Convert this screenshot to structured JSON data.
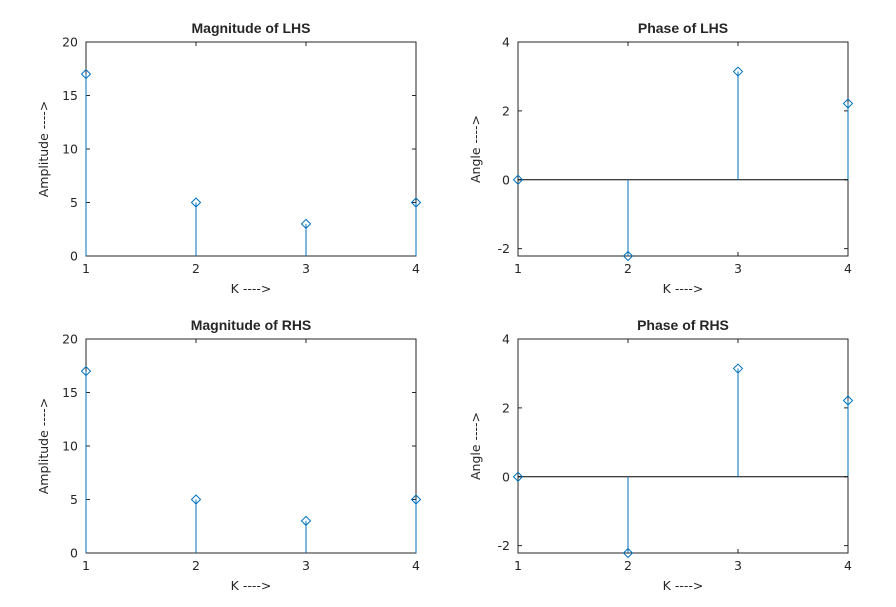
{
  "colors": {
    "stem": "#0072BD",
    "axis": "#262626",
    "baseline": "#000000"
  },
  "chart_data": [
    {
      "type": "stem",
      "title": "Magnitude of LHS",
      "xlabel": "K ---->",
      "ylabel": "Amplitude ---->",
      "x": [
        1,
        2,
        3,
        4
      ],
      "values": [
        17,
        5,
        3,
        5
      ],
      "xlim": [
        1,
        4
      ],
      "ylim": [
        0,
        20
      ],
      "xticks": [
        1,
        2,
        3,
        4
      ],
      "yticks": [
        0,
        5,
        10,
        15,
        20
      ]
    },
    {
      "type": "stem",
      "title": "Phase of LHS",
      "xlabel": "K ---->",
      "ylabel": "Angle ---->",
      "x": [
        1,
        2,
        3,
        4
      ],
      "values": [
        0,
        -2.214,
        3.1416,
        2.214
      ],
      "xlim": [
        1,
        4
      ],
      "ylim": [
        -2.214,
        4
      ],
      "xticks": [
        1,
        2,
        3,
        4
      ],
      "yticks": [
        -2,
        0,
        2,
        4
      ],
      "baseline": true
    },
    {
      "type": "stem",
      "title": "Magnitude of RHS",
      "xlabel": "K ---->",
      "ylabel": "Amplitude ---->",
      "x": [
        1,
        2,
        3,
        4
      ],
      "values": [
        17,
        5,
        3,
        5
      ],
      "xlim": [
        1,
        4
      ],
      "ylim": [
        0,
        20
      ],
      "xticks": [
        1,
        2,
        3,
        4
      ],
      "yticks": [
        0,
        5,
        10,
        15,
        20
      ]
    },
    {
      "type": "stem",
      "title": "Phase of RHS",
      "xlabel": "K ---->",
      "ylabel": "Angle ---->",
      "x": [
        1,
        2,
        3,
        4
      ],
      "values": [
        0,
        -2.214,
        3.1416,
        2.214
      ],
      "xlim": [
        1,
        4
      ],
      "ylim": [
        -2.214,
        4
      ],
      "xticks": [
        1,
        2,
        3,
        4
      ],
      "yticks": [
        -2,
        0,
        2,
        4
      ],
      "baseline": true
    }
  ]
}
